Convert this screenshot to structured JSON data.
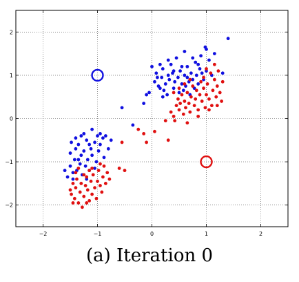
{
  "caption": "(a) Iteration 0",
  "chart_data": {
    "type": "scatter",
    "title": "",
    "xlabel": "",
    "ylabel": "",
    "xlim": [
      -2.5,
      2.5
    ],
    "ylim": [
      -2.5,
      2.5
    ],
    "xticks": [
      -2,
      -1,
      0,
      1,
      2
    ],
    "yticks": [
      -2,
      -1,
      0,
      1,
      2
    ],
    "xtick_labels": [
      "−2",
      "−1",
      "0",
      "1",
      "2"
    ],
    "ytick_labels": [
      "−2",
      "−1",
      "0",
      "1",
      "2"
    ],
    "grid": "dotted",
    "series": [
      {
        "color": "#1010e0",
        "marker": "dot",
        "points": [
          [
            -0.55,
            0.25
          ],
          [
            -0.35,
            -0.15
          ],
          [
            -0.15,
            0.35
          ],
          [
            -0.1,
            0.55
          ],
          [
            0.0,
            1.2
          ],
          [
            0.05,
            0.85
          ],
          [
            0.08,
            1.05
          ],
          [
            0.1,
            0.95
          ],
          [
            0.12,
            0.75
          ],
          [
            0.15,
            0.7
          ],
          [
            0.18,
            0.95
          ],
          [
            0.2,
            1.15
          ],
          [
            0.22,
            0.65
          ],
          [
            0.25,
            0.8
          ],
          [
            0.28,
            0.55
          ],
          [
            0.3,
            1.0
          ],
          [
            0.32,
            0.9
          ],
          [
            0.35,
            1.25
          ],
          [
            0.38,
            1.05
          ],
          [
            0.4,
            0.7
          ],
          [
            0.42,
            0.85
          ],
          [
            0.45,
            1.4
          ],
          [
            0.48,
            0.95
          ],
          [
            0.5,
            0.6
          ],
          [
            0.52,
            1.1
          ],
          [
            0.55,
            0.8
          ],
          [
            0.58,
            0.65
          ],
          [
            0.6,
            1.0
          ],
          [
            0.62,
            0.75
          ],
          [
            0.65,
            1.2
          ],
          [
            0.68,
            0.85
          ],
          [
            0.7,
            0.55
          ],
          [
            0.72,
            1.05
          ],
          [
            0.75,
            0.9
          ],
          [
            0.78,
            0.7
          ],
          [
            0.8,
            1.3
          ],
          [
            0.82,
            1.0
          ],
          [
            0.85,
            0.8
          ],
          [
            0.88,
            1.15
          ],
          [
            0.9,
            1.45
          ],
          [
            0.92,
            1.05
          ],
          [
            0.95,
            0.9
          ],
          [
            0.98,
            1.65
          ],
          [
            1.0,
            1.1
          ],
          [
            1.05,
            1.35
          ],
          [
            1.1,
            1.0
          ],
          [
            1.15,
            1.5
          ],
          [
            0.3,
            1.35
          ],
          [
            0.6,
            1.55
          ],
          [
            0.75,
            1.4
          ],
          [
            -0.05,
            0.6
          ],
          [
            0.15,
            1.25
          ],
          [
            0.55,
            1.2
          ],
          [
            0.4,
            1.1
          ],
          [
            0.65,
            0.95
          ],
          [
            0.2,
            0.5
          ],
          [
            0.85,
            1.25
          ],
          [
            1.3,
            1.05
          ],
          [
            1.0,
            1.6
          ],
          [
            1.4,
            1.85
          ],
          [
            -1.55,
            -1.35
          ],
          [
            -1.5,
            -0.8
          ],
          [
            -1.5,
            -1.1
          ],
          [
            -1.48,
            -0.55
          ],
          [
            -1.45,
            -1.25
          ],
          [
            -1.42,
            -0.95
          ],
          [
            -1.4,
            -0.7
          ],
          [
            -1.38,
            -1.2
          ],
          [
            -1.35,
            -0.6
          ],
          [
            -1.32,
            -1.05
          ],
          [
            -1.3,
            -0.85
          ],
          [
            -1.28,
            -1.3
          ],
          [
            -1.25,
            -0.75
          ],
          [
            -1.22,
            -1.1
          ],
          [
            -1.2,
            -0.5
          ],
          [
            -1.18,
            -0.95
          ],
          [
            -1.15,
            -1.2
          ],
          [
            -1.12,
            -0.7
          ],
          [
            -1.1,
            -0.85
          ],
          [
            -1.05,
            -0.55
          ],
          [
            -1.02,
            -1.0
          ],
          [
            -0.98,
            -0.75
          ],
          [
            -0.95,
            -0.6
          ],
          [
            -0.9,
            -0.45
          ],
          [
            -0.88,
            -0.9
          ],
          [
            -0.85,
            -0.4
          ],
          [
            -0.8,
            -0.7
          ],
          [
            -0.75,
            -0.5
          ],
          [
            -1.4,
            -0.45
          ],
          [
            -1.25,
            -0.35
          ],
          [
            -1.1,
            -0.25
          ],
          [
            -0.95,
            -0.35
          ],
          [
            -1.45,
            -1.4
          ],
          [
            -1.2,
            -1.4
          ],
          [
            -1.3,
            -0.4
          ],
          [
            -1.6,
            -1.2
          ],
          [
            -1.05,
            -1.15
          ],
          [
            -1.15,
            -0.6
          ],
          [
            -1.35,
            -0.95
          ],
          [
            -1.0,
            -0.4
          ]
        ]
      },
      {
        "color": "#e01010",
        "marker": "dot",
        "points": [
          [
            -0.25,
            -0.25
          ],
          [
            -0.15,
            -0.35
          ],
          [
            -0.1,
            -0.55
          ],
          [
            0.05,
            -0.3
          ],
          [
            0.3,
            -0.5
          ],
          [
            0.25,
            -0.05
          ],
          [
            0.35,
            0.15
          ],
          [
            0.4,
            0.05
          ],
          [
            0.42,
            -0.05
          ],
          [
            0.45,
            0.3
          ],
          [
            0.48,
            0.45
          ],
          [
            0.5,
            0.2
          ],
          [
            0.52,
            0.35
          ],
          [
            0.55,
            0.55
          ],
          [
            0.58,
            0.1
          ],
          [
            0.6,
            0.4
          ],
          [
            0.62,
            0.25
          ],
          [
            0.65,
            0.6
          ],
          [
            0.68,
            0.35
          ],
          [
            0.7,
            0.15
          ],
          [
            0.72,
            0.5
          ],
          [
            0.75,
            0.75
          ],
          [
            0.78,
            0.3
          ],
          [
            0.8,
            0.45
          ],
          [
            0.82,
            0.65
          ],
          [
            0.85,
            0.2
          ],
          [
            0.88,
            0.55
          ],
          [
            0.9,
            0.85
          ],
          [
            0.92,
            0.4
          ],
          [
            0.95,
            0.7
          ],
          [
            0.98,
            0.25
          ],
          [
            1.0,
            0.55
          ],
          [
            1.02,
            0.8
          ],
          [
            1.05,
            0.45
          ],
          [
            1.08,
            1.05
          ],
          [
            1.1,
            0.3
          ],
          [
            1.12,
            0.65
          ],
          [
            1.15,
            0.9
          ],
          [
            1.18,
            0.5
          ],
          [
            1.2,
            0.75
          ],
          [
            1.22,
            1.1
          ],
          [
            1.25,
            0.6
          ],
          [
            1.28,
            0.4
          ],
          [
            1.3,
            0.85
          ],
          [
            0.7,
            0.9
          ],
          [
            0.6,
            0.8
          ],
          [
            0.95,
            0.95
          ],
          [
            0.5,
            0.7
          ],
          [
            1.0,
            1.15
          ],
          [
            1.15,
            1.25
          ],
          [
            0.85,
            0.05
          ],
          [
            0.65,
            -0.1
          ],
          [
            1.05,
            0.2
          ],
          [
            0.4,
            0.6
          ],
          [
            1.2,
            0.3
          ],
          [
            -1.5,
            -1.65
          ],
          [
            -1.48,
            -1.75
          ],
          [
            -1.45,
            -1.5
          ],
          [
            -1.42,
            -1.85
          ],
          [
            -1.4,
            -1.6
          ],
          [
            -1.38,
            -1.4
          ],
          [
            -1.35,
            -1.95
          ],
          [
            -1.32,
            -1.7
          ],
          [
            -1.3,
            -1.5
          ],
          [
            -1.28,
            -2.05
          ],
          [
            -1.25,
            -1.8
          ],
          [
            -1.22,
            -1.55
          ],
          [
            -1.2,
            -1.35
          ],
          [
            -1.18,
            -1.65
          ],
          [
            -1.15,
            -1.9
          ],
          [
            -1.12,
            -1.45
          ],
          [
            -1.1,
            -1.75
          ],
          [
            -1.08,
            -1.3
          ],
          [
            -1.05,
            -1.6
          ],
          [
            -1.02,
            -1.85
          ],
          [
            -1.0,
            -1.45
          ],
          [
            -0.98,
            -1.2
          ],
          [
            -0.95,
            -1.55
          ],
          [
            -0.92,
            -1.7
          ],
          [
            -0.9,
            -1.35
          ],
          [
            -0.88,
            -1.1
          ],
          [
            -0.85,
            -1.5
          ],
          [
            -0.82,
            -1.25
          ],
          [
            -0.78,
            -1.4
          ],
          [
            -0.6,
            -1.15
          ],
          [
            -0.5,
            -1.2
          ],
          [
            -1.4,
            -1.25
          ],
          [
            -1.25,
            -1.3
          ],
          [
            -1.1,
            -1.15
          ],
          [
            -0.55,
            -0.55
          ],
          [
            -1.35,
            -1.15
          ],
          [
            -1.15,
            -1.2
          ],
          [
            -0.95,
            -1.05
          ],
          [
            -1.45,
            -1.95
          ],
          [
            -1.2,
            -1.95
          ]
        ]
      }
    ],
    "centroids": [
      {
        "x": -1,
        "y": 1,
        "color": "#1010e0",
        "marker": "open-circle"
      },
      {
        "x": 1,
        "y": -1,
        "color": "#e01010",
        "marker": "open-circle"
      }
    ]
  }
}
